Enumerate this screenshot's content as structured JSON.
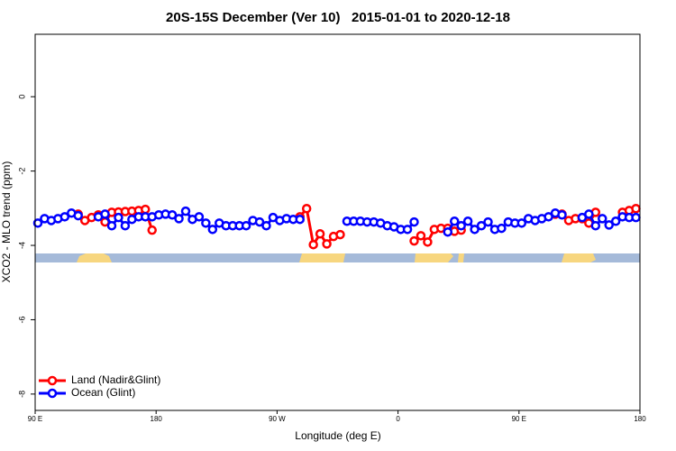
{
  "chart_data": {
    "type": "line",
    "title": "20S-15S December (Ver 10)   2015-01-01 to 2020-12-18",
    "x_label": "Longitude (deg E)",
    "y_label": "XCO2 - MLO trend (ppm)",
    "x": [
      92,
      97,
      102,
      107,
      112,
      117,
      122,
      127,
      132,
      137,
      142,
      147,
      152,
      157,
      162,
      167,
      172,
      177,
      182,
      187,
      192,
      197,
      202,
      207,
      212,
      217,
      222,
      227,
      232,
      237,
      242,
      247,
      252,
      257,
      262,
      267,
      272,
      277,
      282,
      287,
      292,
      297,
      302,
      307,
      312,
      317,
      322,
      327,
      332,
      337,
      342,
      347,
      352,
      357,
      362,
      367,
      372,
      377,
      382,
      387,
      392,
      397,
      402,
      407,
      412,
      417,
      422,
      427,
      432,
      437,
      442,
      447,
      452,
      457,
      462,
      467,
      472,
      477,
      482,
      487,
      492,
      497,
      502,
      507,
      512,
      517,
      522,
      527,
      532,
      537
    ],
    "series": [
      {
        "name": "Land (Nadir&Glint)",
        "color": "#ff0000",
        "values": [
          null,
          null,
          null,
          null,
          null,
          null,
          -3.16,
          -3.33,
          -3.25,
          -3.18,
          -3.37,
          -3.11,
          -3.1,
          -3.09,
          -3.08,
          -3.06,
          -3.03,
          -3.59,
          null,
          null,
          null,
          null,
          null,
          null,
          null,
          null,
          null,
          null,
          null,
          null,
          null,
          null,
          null,
          null,
          null,
          null,
          null,
          null,
          null,
          -3.23,
          -3.01,
          -3.98,
          -3.69,
          -3.96,
          -3.76,
          -3.71,
          null,
          null,
          null,
          null,
          null,
          null,
          null,
          null,
          null,
          null,
          -3.88,
          -3.74,
          -3.91,
          -3.57,
          -3.54,
          -3.54,
          -3.62,
          -3.59,
          null,
          null,
          null,
          null,
          null,
          null,
          null,
          null,
          null,
          null,
          null,
          null,
          null,
          -3.16,
          -3.16,
          -3.33,
          -3.28,
          -3.28,
          -3.4,
          -3.11,
          null,
          null,
          null,
          -3.11,
          -3.06,
          -3.01
        ]
      },
      {
        "name": "Ocean (Glint)",
        "color": "#0000ff",
        "values": [
          -3.4,
          -3.28,
          -3.33,
          -3.28,
          -3.23,
          -3.13,
          -3.2,
          null,
          null,
          -3.23,
          -3.16,
          -3.47,
          -3.25,
          -3.47,
          -3.3,
          -3.23,
          -3.23,
          -3.23,
          -3.18,
          -3.16,
          -3.18,
          -3.28,
          -3.08,
          -3.3,
          -3.23,
          -3.4,
          -3.57,
          -3.4,
          -3.47,
          -3.47,
          -3.47,
          -3.47,
          -3.33,
          -3.37,
          -3.47,
          -3.25,
          -3.33,
          -3.28,
          -3.3,
          -3.3,
          null,
          null,
          null,
          null,
          null,
          null,
          -3.35,
          -3.35,
          -3.35,
          -3.37,
          -3.37,
          -3.4,
          -3.47,
          -3.5,
          -3.57,
          -3.57,
          -3.37,
          null,
          null,
          null,
          null,
          -3.64,
          -3.35,
          -3.47,
          -3.35,
          -3.57,
          -3.47,
          -3.37,
          -3.57,
          -3.54,
          -3.37,
          -3.4,
          -3.4,
          -3.28,
          -3.33,
          -3.28,
          -3.23,
          -3.13,
          -3.18,
          null,
          null,
          -3.25,
          -3.16,
          -3.47,
          -3.28,
          -3.45,
          -3.35,
          -3.23,
          -3.25,
          -3.25
        ]
      }
    ],
    "xlim": [
      90,
      540
    ],
    "xticks": [
      {
        "value": 90,
        "label": "90 E"
      },
      180,
      {
        "value": 270,
        "label": "90 W"
      },
      {
        "value": 360,
        "label": "0"
      },
      {
        "value": 450,
        "label": "90 E"
      },
      {
        "value": 540,
        "label": "180"
      }
    ],
    "ylim": [
      -8.44,
      1.68
    ],
    "yticks": [
      0,
      -2,
      -4,
      -6,
      -8
    ],
    "legend": "bottom-left"
  }
}
